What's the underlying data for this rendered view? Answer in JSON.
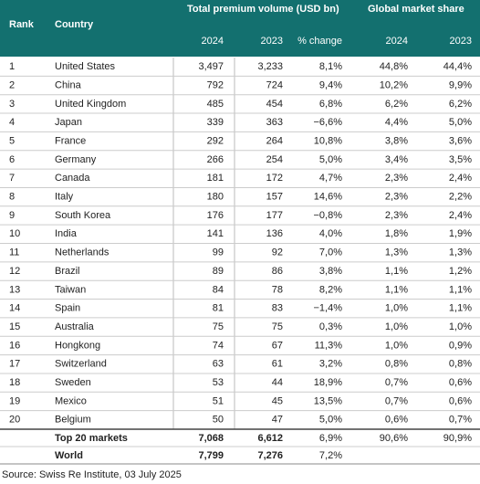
{
  "table": {
    "headers": {
      "rank": "Rank",
      "country": "Country",
      "premium": "Total premium volume (USD bn)",
      "share": "Global market share",
      "sub": [
        "2024",
        "2023",
        "% change",
        "2024",
        "2023"
      ]
    },
    "rows": [
      [
        "1",
        "United States",
        "3,497",
        "3,233",
        "8,1%",
        "44,8%",
        "44,4%"
      ],
      [
        "2",
        "China",
        "792",
        "724",
        "9,4%",
        "10,2%",
        "9,9%"
      ],
      [
        "3",
        "United Kingdom",
        "485",
        "454",
        "6,8%",
        "6,2%",
        "6,2%"
      ],
      [
        "4",
        "Japan",
        "339",
        "363",
        "−6,6%",
        "4,4%",
        "5,0%"
      ],
      [
        "5",
        "France",
        "292",
        "264",
        "10,8%",
        "3,8%",
        "3,6%"
      ],
      [
        "6",
        "Germany",
        "266",
        "254",
        "5,0%",
        "3,4%",
        "3,5%"
      ],
      [
        "7",
        "Canada",
        "181",
        "172",
        "4,7%",
        "2,3%",
        "2,4%"
      ],
      [
        "8",
        "Italy",
        "180",
        "157",
        "14,6%",
        "2,3%",
        "2,2%"
      ],
      [
        "9",
        "South Korea",
        "176",
        "177",
        "−0,8%",
        "2,3%",
        "2,4%"
      ],
      [
        "10",
        "India",
        "141",
        "136",
        "4,0%",
        "1,8%",
        "1,9%"
      ],
      [
        "11",
        "Netherlands",
        "99",
        "92",
        "7,0%",
        "1,3%",
        "1,3%"
      ],
      [
        "12",
        "Brazil",
        "89",
        "86",
        "3,8%",
        "1,1%",
        "1,2%"
      ],
      [
        "13",
        "Taiwan",
        "84",
        "78",
        "8,2%",
        "1,1%",
        "1,1%"
      ],
      [
        "14",
        "Spain",
        "81",
        "83",
        "−1,4%",
        "1,0%",
        "1,1%"
      ],
      [
        "15",
        "Australia",
        "75",
        "75",
        "0,3%",
        "1,0%",
        "1,0%"
      ],
      [
        "16",
        "Hongkong",
        "74",
        "67",
        "11,3%",
        "1,0%",
        "0,9%"
      ],
      [
        "17",
        "Switzerland",
        "63",
        "61",
        "3,2%",
        "0,8%",
        "0,8%"
      ],
      [
        "18",
        "Sweden",
        "53",
        "44",
        "18,9%",
        "0,7%",
        "0,6%"
      ],
      [
        "19",
        "Mexico",
        "51",
        "45",
        "13,5%",
        "0,7%",
        "0,6%"
      ],
      [
        "20",
        "Belgium",
        "50",
        "47",
        "5,0%",
        "0,6%",
        "0,7%"
      ]
    ],
    "totals": [
      [
        "Top 20 markets",
        "7,068",
        "6,612",
        "6,9%",
        "90,6%",
        "90,9%"
      ],
      [
        "World",
        "7,799",
        "7,276",
        "7,2%"
      ]
    ]
  },
  "source": "Source: Swiss Re Institute, 03 July 2025"
}
